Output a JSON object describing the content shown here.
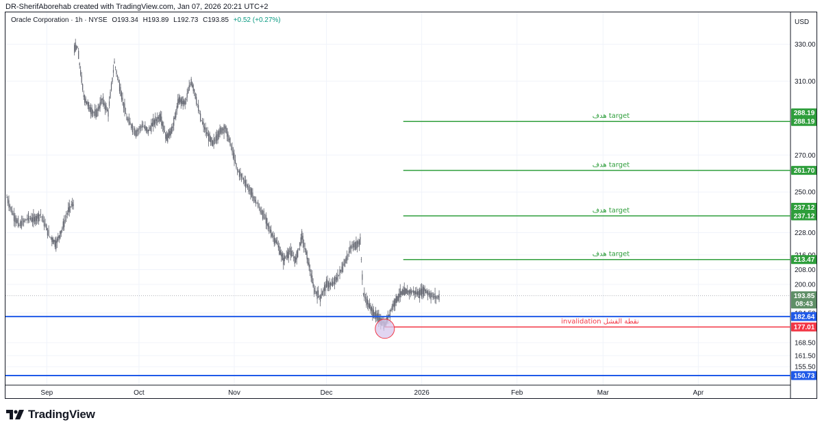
{
  "header": {
    "attribution": "DR-SherifAborehab created with TradingView.com, Jan 07, 2026 20:21 UTC+2"
  },
  "legend": {
    "symbol": "Oracle Corporation · 1h · NYSE",
    "open": "O193.34",
    "high": "H193.89",
    "low": "L192.73",
    "close": "C193.85",
    "change": "+0.52 (+0.27%)"
  },
  "branding": {
    "name": "TradingView",
    "logo_icon": "tradingview-logo-icon"
  },
  "colors": {
    "green": "#2e9e3b",
    "blue": "#1f59e8",
    "red": "#f23645",
    "candle": "#5d606b",
    "last_price_tag": "#5f8f67",
    "circle_fill": "#d7c7ec",
    "circle_stroke": "#f23645"
  },
  "chart_data": {
    "type": "candlestick",
    "currency": "USD",
    "title": "Oracle Corporation · 1h · NYSE",
    "ylim": [
      147,
      345
    ],
    "y_ticks": [
      155.5,
      161.5,
      168.5,
      184.5,
      200,
      208,
      216,
      228,
      250,
      270,
      310,
      330
    ],
    "y_tick_labels": [
      "155.50",
      "161.50",
      "168.50",
      "184.50",
      "200.00",
      "208.00",
      "216.00",
      "228.00",
      "250.00",
      "270.00",
      "310.00",
      "330.00"
    ],
    "x_labels": [
      "Sep",
      "Oct",
      "Nov",
      "Dec",
      "2026",
      "Feb",
      "Mar",
      "Apr"
    ],
    "grid": true,
    "price_path": [
      {
        "date": "2025-08-19",
        "close": 247
      },
      {
        "date": "2025-08-21",
        "close": 238
      },
      {
        "date": "2025-08-23",
        "close": 232
      },
      {
        "date": "2025-08-26",
        "close": 236
      },
      {
        "date": "2025-08-28",
        "close": 235
      },
      {
        "date": "2025-08-30",
        "close": 238
      },
      {
        "date": "2025-09-02",
        "close": 226
      },
      {
        "date": "2025-09-04",
        "close": 222
      },
      {
        "date": "2025-09-06",
        "close": 230
      },
      {
        "date": "2025-09-08",
        "close": 240
      },
      {
        "date": "2025-09-09",
        "close": 243
      },
      {
        "date": "2025-09-11",
        "close": 328
      },
      {
        "date": "2025-09-13",
        "close": 302
      },
      {
        "date": "2025-09-15",
        "close": 295
      },
      {
        "date": "2025-09-17",
        "close": 292
      },
      {
        "date": "2025-09-19",
        "close": 300
      },
      {
        "date": "2025-09-21",
        "close": 293
      },
      {
        "date": "2025-09-23",
        "close": 320
      },
      {
        "date": "2025-09-25",
        "close": 305
      },
      {
        "date": "2025-09-27",
        "close": 290
      },
      {
        "date": "2025-09-30",
        "close": 282
      },
      {
        "date": "2025-10-02",
        "close": 286
      },
      {
        "date": "2025-10-04",
        "close": 283
      },
      {
        "date": "2025-10-06",
        "close": 288
      },
      {
        "date": "2025-10-08",
        "close": 291
      },
      {
        "date": "2025-10-10",
        "close": 279
      },
      {
        "date": "2025-10-12",
        "close": 285
      },
      {
        "date": "2025-10-14",
        "close": 300
      },
      {
        "date": "2025-10-16",
        "close": 298
      },
      {
        "date": "2025-10-18",
        "close": 310
      },
      {
        "date": "2025-10-19",
        "close": 305
      },
      {
        "date": "2025-10-21",
        "close": 290
      },
      {
        "date": "2025-10-23",
        "close": 282
      },
      {
        "date": "2025-10-25",
        "close": 276
      },
      {
        "date": "2025-10-27",
        "close": 282
      },
      {
        "date": "2025-10-29",
        "close": 285
      },
      {
        "date": "2025-10-31",
        "close": 275
      },
      {
        "date": "2025-11-02",
        "close": 262
      },
      {
        "date": "2025-11-04",
        "close": 257
      },
      {
        "date": "2025-11-06",
        "close": 251
      },
      {
        "date": "2025-11-08",
        "close": 245
      },
      {
        "date": "2025-11-11",
        "close": 236
      },
      {
        "date": "2025-11-13",
        "close": 228
      },
      {
        "date": "2025-11-15",
        "close": 222
      },
      {
        "date": "2025-11-17",
        "close": 213
      },
      {
        "date": "2025-11-19",
        "close": 218
      },
      {
        "date": "2025-11-21",
        "close": 213
      },
      {
        "date": "2025-11-23",
        "close": 226
      },
      {
        "date": "2025-11-25",
        "close": 213
      },
      {
        "date": "2025-11-27",
        "close": 197
      },
      {
        "date": "2025-11-29",
        "close": 193
      },
      {
        "date": "2025-12-01",
        "close": 200
      },
      {
        "date": "2025-12-03",
        "close": 200
      },
      {
        "date": "2025-12-05",
        "close": 205
      },
      {
        "date": "2025-12-07",
        "close": 212
      },
      {
        "date": "2025-12-09",
        "close": 220
      },
      {
        "date": "2025-12-11",
        "close": 222
      },
      {
        "date": "2025-12-12",
        "close": 223
      },
      {
        "date": "2025-12-13",
        "close": 195
      },
      {
        "date": "2025-12-15",
        "close": 188
      },
      {
        "date": "2025-12-17",
        "close": 183
      },
      {
        "date": "2025-12-19",
        "close": 180
      },
      {
        "date": "2025-12-20",
        "close": 178
      },
      {
        "date": "2025-12-22",
        "close": 186
      },
      {
        "date": "2025-12-23",
        "close": 190
      },
      {
        "date": "2025-12-25",
        "close": 195
      },
      {
        "date": "2025-12-27",
        "close": 196
      },
      {
        "date": "2025-12-29",
        "close": 196
      },
      {
        "date": "2025-12-31",
        "close": 195
      },
      {
        "date": "2026-01-02",
        "close": 197
      },
      {
        "date": "2026-01-04",
        "close": 194
      },
      {
        "date": "2026-01-06",
        "close": 193
      },
      {
        "date": "2026-01-07",
        "close": 193.85
      }
    ],
    "horizontal_levels": [
      {
        "name": "target",
        "label": "هدف target",
        "price": 288.19,
        "tag": "288.19",
        "color": "green",
        "start_date": "2025-12-26"
      },
      {
        "name": "target",
        "label": "هدف target",
        "price": 261.7,
        "tag": "261.70",
        "color": "green",
        "start_date": "2025-12-26"
      },
      {
        "name": "target",
        "label": "هدف target",
        "price": 237.12,
        "tag": "237.12",
        "color": "green",
        "start_date": "2025-12-26"
      },
      {
        "name": "target",
        "label": "هدف target",
        "price": 213.47,
        "tag": "213.47",
        "color": "green",
        "start_date": "2025-12-26"
      },
      {
        "name": "invalidation",
        "label": "invalidation نقطة الفشل",
        "price": 177.01,
        "tag": "177.01",
        "color": "red",
        "start_date": "2025-12-20"
      },
      {
        "name": "support",
        "label": "",
        "price": 182.64,
        "tag": "182.64",
        "color": "blue",
        "start_date": "2025-08-19"
      },
      {
        "name": "support",
        "label": "",
        "price": 150.73,
        "tag": "150.73",
        "color": "blue",
        "start_date": "2025-08-19"
      }
    ],
    "extra_tags": [
      {
        "price": 288.19,
        "tag": "288.19",
        "color": "green",
        "offset": "above"
      },
      {
        "price": 237.12,
        "tag": "237.12",
        "color": "green",
        "offset": "above"
      }
    ],
    "last_price": {
      "price": 193.85,
      "tag": "193.85",
      "countdown": "08:43"
    },
    "markers": [
      {
        "type": "circle",
        "date": "2025-12-20",
        "price": 176
      }
    ]
  }
}
